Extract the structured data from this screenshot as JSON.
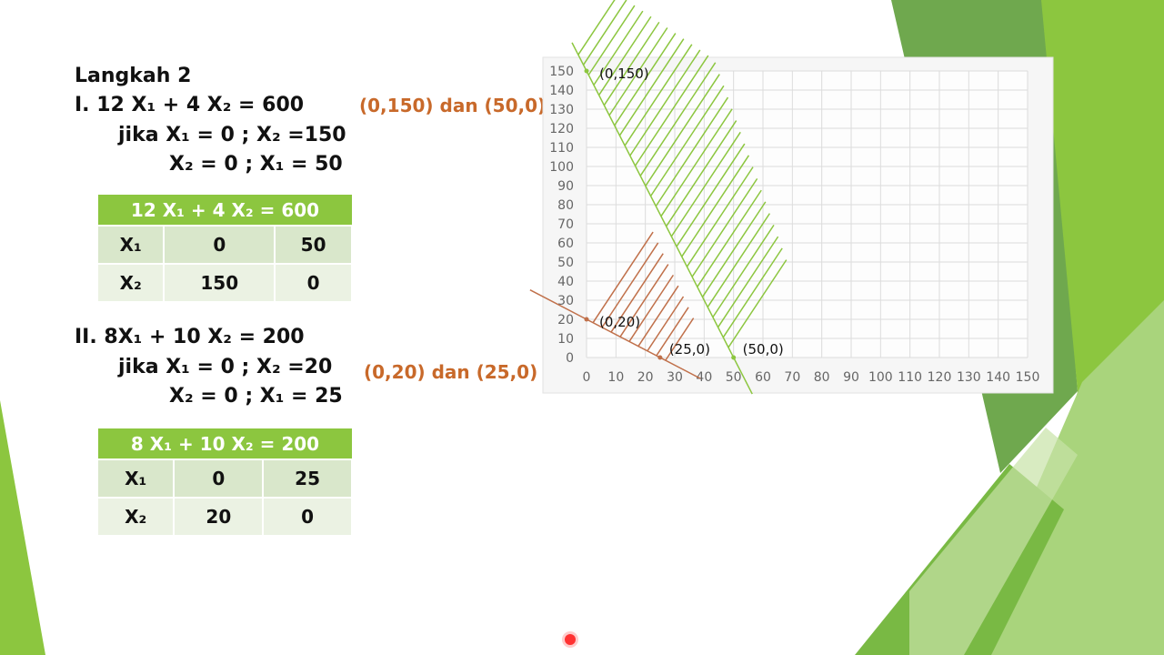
{
  "title": "Langkah 2",
  "eq1": {
    "line": "I. 12 X₁ + 4 X₂ = 600",
    "if1": "jika X₁ = 0 ; X₂ =150",
    "if2": "X₂ = 0 ; X₁ = 50",
    "points": "(0,150) dan (50,0)",
    "table": {
      "header": "12 X₁ + 4 X₂ = 600",
      "rows": [
        [
          "X₁",
          "0",
          "50"
        ],
        [
          "X₂",
          "150",
          "0"
        ]
      ]
    }
  },
  "eq2": {
    "line": "II. 8X₁ + 10 X₂ = 200",
    "if1": "jika X₁ = 0 ; X₂ =20",
    "if2": "X₂ = 0 ; X₁ = 25",
    "points": "(0,20) dan (25,0)",
    "table": {
      "header": "8 X₁ + 10 X₂ = 200",
      "rows": [
        [
          "X₁",
          "0",
          "25"
        ],
        [
          "X₂",
          "20",
          "0"
        ]
      ]
    }
  },
  "chart_data": {
    "type": "line",
    "xlim": [
      0,
      150
    ],
    "ylim": [
      0,
      150
    ],
    "grid": true,
    "xticks": [
      "0",
      "10",
      "20",
      "30",
      "40",
      "50",
      "60",
      "70",
      "80",
      "90",
      "100",
      "110",
      "120",
      "130",
      "140",
      "150"
    ],
    "yticks": [
      "0",
      "10",
      "20",
      "30",
      "40",
      "50",
      "60",
      "70",
      "80",
      "90",
      "100",
      "110",
      "120",
      "130",
      "140",
      "150"
    ],
    "series": [
      {
        "points": [
          [
            0,
            150
          ],
          [
            50,
            0
          ]
        ],
        "color": "#8cc63f",
        "hatch": "above",
        "labels": [
          "(0,150)",
          "(50,0)"
        ]
      },
      {
        "points": [
          [
            0,
            20
          ],
          [
            25,
            0
          ]
        ],
        "color": "#c0704a",
        "hatch": "above",
        "labels": [
          "(0,20)",
          "(25,0)"
        ]
      }
    ]
  },
  "colors": {
    "accent_green": "#8cc63f",
    "orange_text": "#c8692a"
  }
}
